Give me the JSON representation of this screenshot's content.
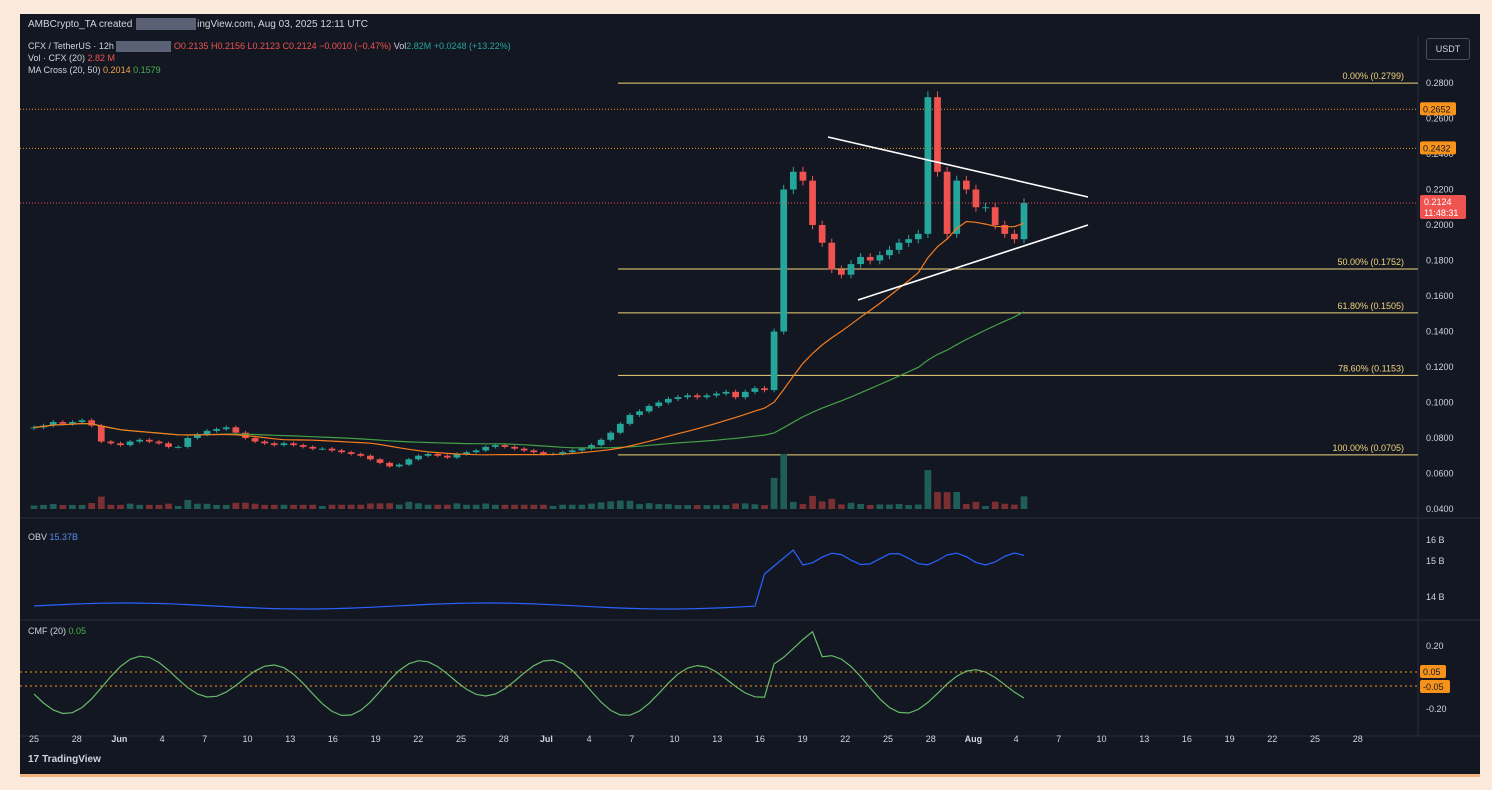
{
  "header": {
    "author": "AMBCrypto_TA",
    "created_text": "created",
    "site_tail": "ingView.com, Aug 03, 2025 12:11 UTC"
  },
  "legend": {
    "symbol": "CFX / TetherUS · 12h",
    "open": "O0.2135",
    "high": "H0.2156",
    "low": "L0.2123",
    "close": "C0.2124",
    "change": "−0.0010 (−0.47%)",
    "vol_label": "Vol",
    "vol_value": "2.82M",
    "vol_change": "+0.0248 (+13.22%)",
    "vol_ind_label": "Vol · CFX (20)",
    "vol_ind_value": "2.82 M",
    "ma_label": "MA Cross (20, 50)",
    "ma_fast": "0.2014",
    "ma_slow": "0.1579"
  },
  "currency_button": "USDT",
  "price_axis": [
    "0.2800",
    "0.2600",
    "0.2400",
    "0.2200",
    "0.2000",
    "0.1800",
    "0.1600",
    "0.1400",
    "0.1200",
    "0.1000",
    "0.0800",
    "0.0600",
    "0.0400"
  ],
  "price_badges": [
    {
      "text": "0.2652",
      "color": "#f7931a"
    },
    {
      "text": "0.2432",
      "color": "#f7931a"
    }
  ],
  "current_price": {
    "price": "0.2124",
    "countdown": "11:48:31",
    "color": "#ef5350"
  },
  "fib_levels": [
    {
      "label": "0.00% (0.2799)",
      "price": 0.2799
    },
    {
      "label": "50.00% (0.1752)",
      "price": 0.1752
    },
    {
      "label": "61.80% (0.1505)",
      "price": 0.1505
    },
    {
      "label": "78.60% (0.1153)",
      "price": 0.1153
    },
    {
      "label": "100.00% (0.0705)",
      "price": 0.0705
    }
  ],
  "obv": {
    "label": "OBV",
    "value": "15.37B",
    "axis": [
      "16 B",
      "15 B",
      "14 B"
    ]
  },
  "cmf": {
    "label": "CMF (20)",
    "value": "0.05",
    "axis": [
      "0.20",
      "-0.20"
    ],
    "badges": [
      "0.05",
      "-0.05"
    ]
  },
  "time_axis": [
    "25",
    "28",
    "Jun",
    "4",
    "7",
    "10",
    "13",
    "16",
    "19",
    "22",
    "25",
    "28",
    "Jul",
    "4",
    "7",
    "10",
    "13",
    "16",
    "19",
    "22",
    "25",
    "28",
    "Aug",
    "4",
    "7",
    "10",
    "13",
    "16",
    "19",
    "22",
    "25",
    "28"
  ],
  "footer": {
    "logo_text": "TradingView",
    "logo_mark": "17"
  },
  "colors": {
    "background": "#131722",
    "up": "#26a69a",
    "down": "#ef5350",
    "ma_fast": "#f57c1f",
    "ma_slow": "#43a047",
    "fib": "#f0d47a",
    "obv": "#2962ff",
    "cmf": "#66bb6a",
    "trendline": "#ffffff"
  },
  "chart_data": {
    "type": "candlestick",
    "symbol": "CFX / TetherUS",
    "timeframe": "12h",
    "ohlc_last": {
      "open": 0.2135,
      "high": 0.2156,
      "low": 0.2123,
      "close": 0.2124
    },
    "closes_approx": [
      0.086,
      0.087,
      0.089,
      0.088,
      0.089,
      0.09,
      0.087,
      0.078,
      0.077,
      0.076,
      0.078,
      0.079,
      0.078,
      0.077,
      0.075,
      0.075,
      0.08,
      0.082,
      0.084,
      0.085,
      0.086,
      0.083,
      0.08,
      0.078,
      0.077,
      0.076,
      0.077,
      0.076,
      0.075,
      0.074,
      0.074,
      0.073,
      0.072,
      0.071,
      0.07,
      0.068,
      0.066,
      0.064,
      0.065,
      0.068,
      0.07,
      0.071,
      0.07,
      0.069,
      0.071,
      0.072,
      0.073,
      0.075,
      0.076,
      0.075,
      0.074,
      0.073,
      0.072,
      0.071,
      0.071,
      0.072,
      0.073,
      0.074,
      0.076,
      0.079,
      0.083,
      0.088,
      0.093,
      0.095,
      0.098,
      0.1,
      0.102,
      0.103,
      0.104,
      0.103,
      0.104,
      0.105,
      0.106,
      0.103,
      0.106,
      0.108,
      0.107,
      0.14,
      0.22,
      0.23,
      0.225,
      0.2,
      0.19,
      0.175,
      0.172,
      0.178,
      0.182,
      0.18,
      0.183,
      0.186,
      0.19,
      0.192,
      0.195,
      0.272,
      0.23,
      0.195,
      0.225,
      0.22,
      0.21,
      0.21,
      0.2,
      0.195,
      0.192,
      0.2124
    ],
    "volume_label": "Vol · CFX (20)",
    "ma_fast_last": 0.2014,
    "ma_slow_last": 0.1579
  }
}
